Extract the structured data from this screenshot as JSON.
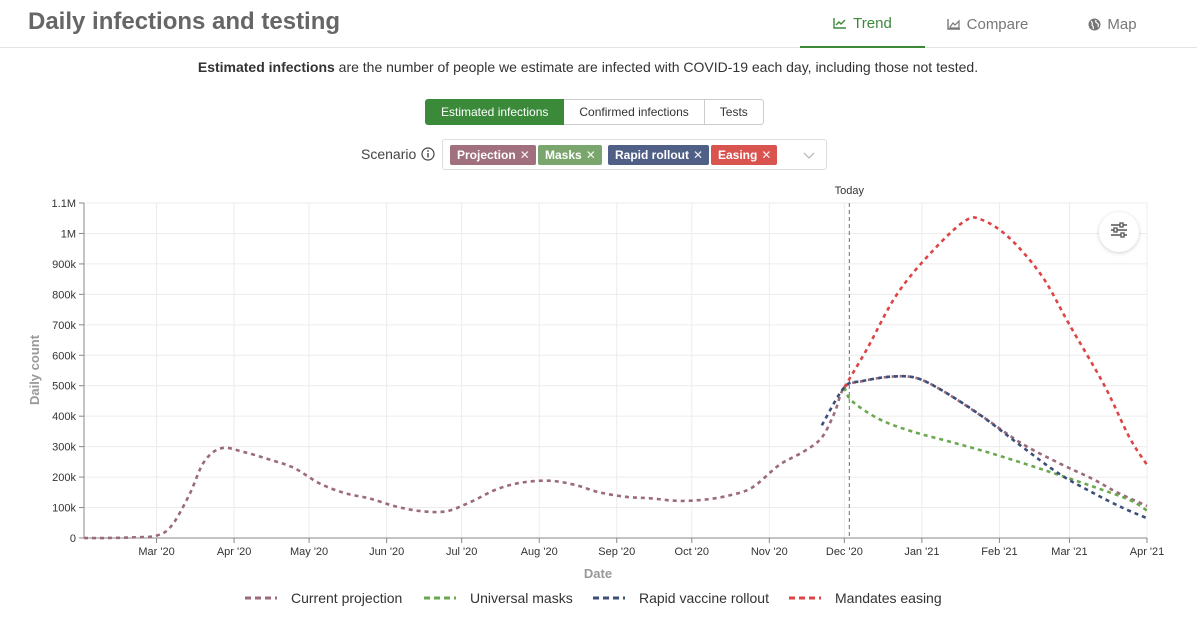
{
  "header": {
    "title": "Daily infections and testing",
    "tabs": [
      {
        "label": "Trend",
        "icon": "line-chart-icon",
        "active": true
      },
      {
        "label": "Compare",
        "icon": "area-chart-icon",
        "active": false
      },
      {
        "label": "Map",
        "icon": "globe-icon",
        "active": false
      }
    ]
  },
  "description": {
    "bold": "Estimated infections",
    "rest": " are the number of people we estimate are infected with COVID-19 each day, including those not tested."
  },
  "segments": [
    {
      "label": "Estimated infections",
      "active": true
    },
    {
      "label": "Confirmed infections",
      "active": false
    },
    {
      "label": "Tests",
      "active": false
    }
  ],
  "scenario": {
    "label": "Scenario",
    "chips": [
      {
        "label": "Projection",
        "color": "#a0707e"
      },
      {
        "label": "Masks",
        "color": "#7aa66d"
      },
      {
        "label": "Rapid rollout",
        "color": "#4f5f86"
      },
      {
        "label": "Easing",
        "color": "#d9534f"
      }
    ]
  },
  "colors": {
    "accent": "#3a8a3a",
    "projection": "#9b6a7b",
    "masks": "#6aa84f",
    "rapid": "#3c4f7a",
    "easing": "#dd4444"
  },
  "chart_data": {
    "type": "line",
    "xlabel": "Date",
    "ylabel": "Daily count",
    "ylim": [
      0,
      1100000
    ],
    "y_ticks": [
      {
        "value": 0,
        "label": "0"
      },
      {
        "value": 100000,
        "label": "100k"
      },
      {
        "value": 200000,
        "label": "200k"
      },
      {
        "value": 300000,
        "label": "300k"
      },
      {
        "value": 400000,
        "label": "400k"
      },
      {
        "value": 500000,
        "label": "500k"
      },
      {
        "value": 600000,
        "label": "600k"
      },
      {
        "value": 700000,
        "label": "700k"
      },
      {
        "value": 800000,
        "label": "800k"
      },
      {
        "value": 900000,
        "label": "900k"
      },
      {
        "value": 1000000,
        "label": "1M"
      },
      {
        "value": 1100000,
        "label": "1.1M"
      }
    ],
    "xlim": [
      "2020-02-01",
      "2021-04-01"
    ],
    "x_ticks": [
      {
        "date": "2020-03-01",
        "label": "Mar '20"
      },
      {
        "date": "2020-04-01",
        "label": "Apr '20"
      },
      {
        "date": "2020-05-01",
        "label": "May '20"
      },
      {
        "date": "2020-06-01",
        "label": "Jun '20"
      },
      {
        "date": "2020-07-01",
        "label": "Jul '20"
      },
      {
        "date": "2020-08-01",
        "label": "Aug '20"
      },
      {
        "date": "2020-09-01",
        "label": "Sep '20"
      },
      {
        "date": "2020-10-01",
        "label": "Oct '20"
      },
      {
        "date": "2020-11-01",
        "label": "Nov '20"
      },
      {
        "date": "2020-12-01",
        "label": "Dec '20"
      },
      {
        "date": "2021-01-01",
        "label": "Jan '21"
      },
      {
        "date": "2021-02-01",
        "label": "Feb '21"
      },
      {
        "date": "2021-03-01",
        "label": "Mar '21"
      },
      {
        "date": "2021-04-01",
        "label": "Apr '21"
      }
    ],
    "today": {
      "date": "2020-12-03",
      "label": "Today"
    },
    "grid": true,
    "legend_position": "bottom",
    "series": [
      {
        "name": "Current projection",
        "key": "projection",
        "points": [
          [
            "2020-02-01",
            0
          ],
          [
            "2020-02-10",
            0
          ],
          [
            "2020-02-20",
            2000
          ],
          [
            "2020-03-01",
            8000
          ],
          [
            "2020-03-07",
            40000
          ],
          [
            "2020-03-14",
            140000
          ],
          [
            "2020-03-20",
            250000
          ],
          [
            "2020-03-27",
            295000
          ],
          [
            "2020-04-05",
            282000
          ],
          [
            "2020-04-15",
            258000
          ],
          [
            "2020-04-25",
            230000
          ],
          [
            "2020-05-05",
            180000
          ],
          [
            "2020-05-15",
            148000
          ],
          [
            "2020-05-25",
            130000
          ],
          [
            "2020-06-05",
            103000
          ],
          [
            "2020-06-15",
            88000
          ],
          [
            "2020-06-25",
            88000
          ],
          [
            "2020-07-05",
            120000
          ],
          [
            "2020-07-15",
            160000
          ],
          [
            "2020-07-25",
            182000
          ],
          [
            "2020-08-05",
            188000
          ],
          [
            "2020-08-15",
            175000
          ],
          [
            "2020-08-25",
            150000
          ],
          [
            "2020-09-05",
            135000
          ],
          [
            "2020-09-15",
            130000
          ],
          [
            "2020-09-25",
            122000
          ],
          [
            "2020-10-05",
            125000
          ],
          [
            "2020-10-15",
            138000
          ],
          [
            "2020-10-25",
            165000
          ],
          [
            "2020-11-05",
            240000
          ],
          [
            "2020-11-15",
            285000
          ],
          [
            "2020-11-22",
            330000
          ],
          [
            "2020-11-27",
            410000
          ],
          [
            "2020-12-01",
            495000
          ],
          [
            "2020-12-08",
            515000
          ],
          [
            "2020-12-20",
            530000
          ],
          [
            "2020-12-30",
            525000
          ],
          [
            "2021-01-10",
            480000
          ],
          [
            "2021-01-25",
            400000
          ],
          [
            "2021-02-10",
            310000
          ],
          [
            "2021-02-25",
            245000
          ],
          [
            "2021-03-10",
            195000
          ],
          [
            "2021-03-20",
            150000
          ],
          [
            "2021-04-01",
            105000
          ]
        ]
      },
      {
        "name": "Universal masks",
        "key": "masks",
        "points": [
          [
            "2020-12-01",
            495000
          ],
          [
            "2020-12-04",
            450000
          ],
          [
            "2020-12-15",
            390000
          ],
          [
            "2020-12-28",
            350000
          ],
          [
            "2021-01-15",
            310000
          ],
          [
            "2021-02-01",
            270000
          ],
          [
            "2021-02-20",
            220000
          ],
          [
            "2021-03-10",
            170000
          ],
          [
            "2021-03-25",
            125000
          ],
          [
            "2021-04-01",
            90000
          ]
        ]
      },
      {
        "name": "Rapid vaccine rollout",
        "key": "rapid",
        "points": [
          [
            "2020-11-22",
            370000
          ],
          [
            "2020-12-01",
            495000
          ],
          [
            "2020-12-08",
            515000
          ],
          [
            "2020-12-20",
            530000
          ],
          [
            "2020-12-30",
            525000
          ],
          [
            "2021-01-10",
            480000
          ],
          [
            "2021-01-25",
            400000
          ],
          [
            "2021-02-10",
            300000
          ],
          [
            "2021-02-25",
            210000
          ],
          [
            "2021-03-10",
            150000
          ],
          [
            "2021-03-22",
            100000
          ],
          [
            "2021-04-01",
            65000
          ]
        ]
      },
      {
        "name": "Mandates easing",
        "key": "easing",
        "points": [
          [
            "2020-12-01",
            495000
          ],
          [
            "2020-12-10",
            620000
          ],
          [
            "2020-12-22",
            800000
          ],
          [
            "2021-01-05",
            940000
          ],
          [
            "2021-01-18",
            1040000
          ],
          [
            "2021-01-25",
            1045000
          ],
          [
            "2021-02-05",
            985000
          ],
          [
            "2021-02-18",
            860000
          ],
          [
            "2021-03-01",
            700000
          ],
          [
            "2021-03-15",
            500000
          ],
          [
            "2021-03-25",
            330000
          ],
          [
            "2021-04-01",
            240000
          ]
        ]
      }
    ]
  }
}
